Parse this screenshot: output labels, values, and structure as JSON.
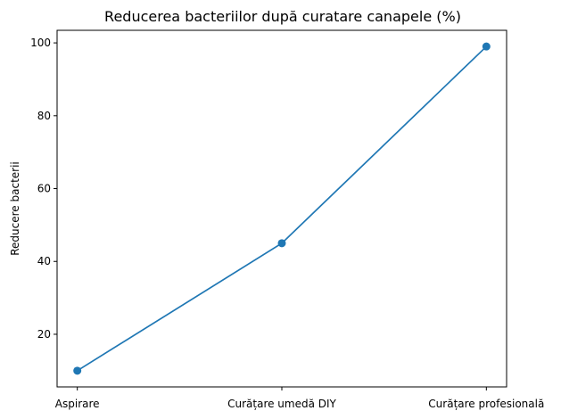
{
  "chart_data": {
    "type": "line",
    "title": "Reducerea bacteriilor după curatare canapele (%)",
    "xlabel": "",
    "ylabel": "Reducere bacterii",
    "categories": [
      "Aspirare",
      "Curățare umedă DIY",
      "Curățare profesională"
    ],
    "series": [
      {
        "values": [
          10,
          45,
          99
        ]
      }
    ],
    "ylim": [
      5.55,
      103.45
    ],
    "yticks": [
      20,
      40,
      60,
      80,
      100
    ],
    "grid": false,
    "legend": "none",
    "colors": {
      "line": "#1f77b4",
      "axis": "#000000"
    }
  }
}
